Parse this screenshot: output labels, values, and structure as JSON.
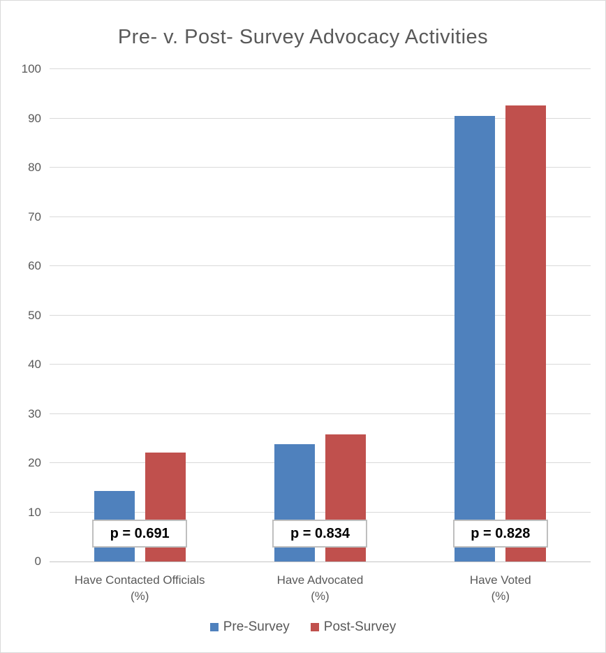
{
  "window": {
    "background_color": "#ffffff",
    "frame_border_color": "#d9d9d9"
  },
  "chart_data": {
    "type": "bar",
    "title": "Pre- v. Post- Survey Advocacy Activities",
    "categories": [
      {
        "line1": "Have Contacted Officials",
        "line2": "(%)"
      },
      {
        "line1": "Have Advocated",
        "line2": "(%)"
      },
      {
        "line1": "Have Voted",
        "line2": "(%)"
      }
    ],
    "series": [
      {
        "name": "Pre-Survey",
        "color": "#4F81BD",
        "values": [
          14.3,
          23.8,
          90.5
        ]
      },
      {
        "name": "Post-Survey",
        "color": "#C0504D",
        "values": [
          22.1,
          25.8,
          92.6
        ]
      }
    ],
    "annotations": [
      {
        "text": "p = 0.691"
      },
      {
        "text": "p = 0.834"
      },
      {
        "text": "p = 0.828"
      }
    ],
    "ylim": [
      0,
      100
    ],
    "ytick_step": 10,
    "yticks": [
      0,
      10,
      20,
      30,
      40,
      50,
      60,
      70,
      80,
      90,
      100
    ],
    "grid": true,
    "legend_position": "bottom",
    "xlabel": "",
    "ylabel": ""
  },
  "styles": {
    "title_color": "#595959",
    "axis_text_color": "#595959",
    "gridline_color": "#d9d9d9",
    "zero_axis_color": "#c3c3c3",
    "annotation_border_color": "#bfbfbf",
    "annotation_text_color": "#000000",
    "annotation_background": "#ffffff"
  }
}
